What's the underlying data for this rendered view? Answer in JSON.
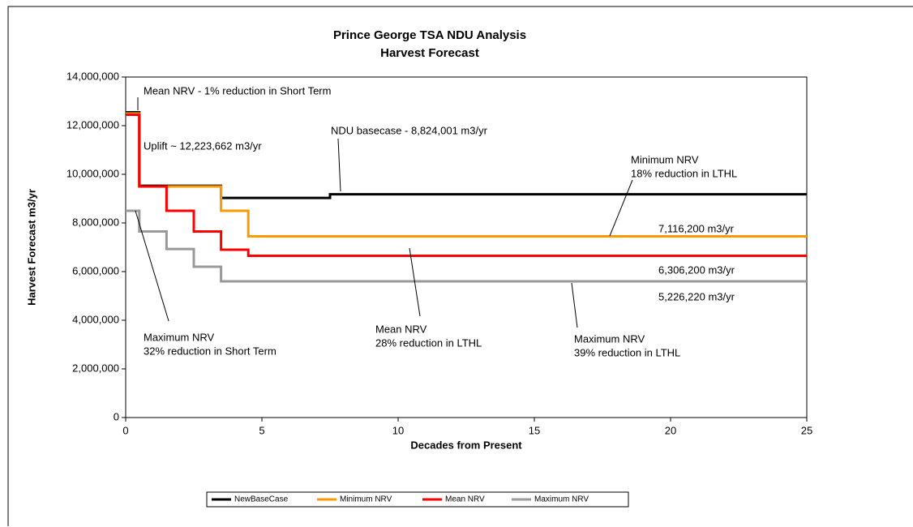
{
  "chart_data": {
    "type": "line",
    "title": [
      "Prince George TSA NDU Analysis",
      "Harvest Forecast"
    ],
    "x_label": "Decades from Present",
    "y_label": "Harvest Forecast m3/yr",
    "step": true,
    "xlim": [
      0,
      25
    ],
    "xticks": [
      0,
      5,
      10,
      15,
      20,
      25
    ],
    "ylim": [
      0,
      14000000
    ],
    "yticks": [
      {
        "value": 0,
        "label": "0"
      },
      {
        "value": 2000000,
        "label": "2,000,000"
      },
      {
        "value": 4000000,
        "label": "4,000,000"
      },
      {
        "value": 6000000,
        "label": "6,000,000"
      },
      {
        "value": 8000000,
        "label": "8,000,000"
      },
      {
        "value": 10000000,
        "label": "10,000,000"
      },
      {
        "value": 12000000,
        "label": "12,000,000"
      },
      {
        "value": 14000000,
        "label": "14,000,000"
      }
    ],
    "series": [
      {
        "name": "NewBaseCase",
        "color": "#000000",
        "x": [
          0,
          0.5,
          3.5,
          7.5,
          25
        ],
        "values": [
          12550000,
          9530000,
          9030000,
          9180000,
          9180000
        ]
      },
      {
        "name": "Minimum NRV",
        "color": "#ff9900",
        "x": [
          0,
          0.5,
          3.5,
          4.5,
          25
        ],
        "values": [
          12500000,
          9500000,
          8500000,
          7450000,
          7450000
        ]
      },
      {
        "name": "Mean NRV",
        "color": "#ff0000",
        "x": [
          0,
          0.5,
          1.5,
          2.5,
          3.5,
          4.5,
          25
        ],
        "values": [
          12450000,
          9500000,
          8500000,
          7650000,
          6900000,
          6650000,
          6650000
        ]
      },
      {
        "name": "Maximum NRV",
        "color": "#999999",
        "x": [
          0,
          0.5,
          1.5,
          2.5,
          3.5,
          25
        ],
        "values": [
          8500000,
          7650000,
          6930000,
          6200000,
          5600000,
          5600000
        ]
      }
    ],
    "annotations": [
      {
        "lines": [
          "Mean NRV - 1% reduction in Short Term"
        ]
      },
      {
        "lines": [
          "Uplift ~ 12,223,662 m3/yr"
        ]
      },
      {
        "lines": [
          "NDU basecase - 8,824,001 m3/yr"
        ]
      },
      {
        "lines": [
          "Minimum NRV",
          "18% reduction in LTHL"
        ]
      },
      {
        "lines": [
          "7,116,200 m3/yr"
        ]
      },
      {
        "lines": [
          "6,306,200 m3/yr"
        ]
      },
      {
        "lines": [
          "5,226,220 m3/yr"
        ]
      },
      {
        "lines": [
          "Maximum NRV",
          "32% reduction in Short Term"
        ]
      },
      {
        "lines": [
          "Mean NRV",
          "28% reduction in LTHL"
        ]
      },
      {
        "lines": [
          "Maximum NRV",
          "39% reduction in LTHL"
        ]
      }
    ]
  }
}
